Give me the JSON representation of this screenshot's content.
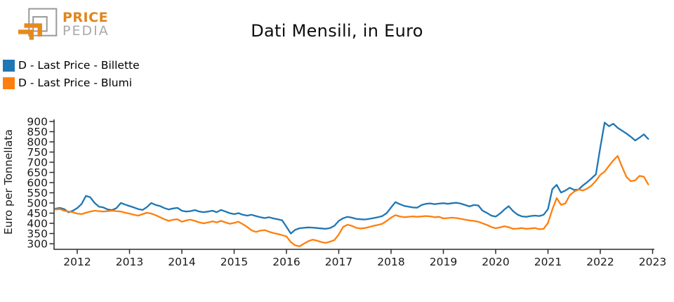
{
  "header": {
    "title": "Dati Mensili, in Euro",
    "logo": {
      "line1": "PRICE",
      "line2": "PEDIA"
    }
  },
  "legend": {
    "items": [
      {
        "label": "D - Last Price - Billette",
        "color": "#1f77b4"
      },
      {
        "label": "D - Last Price - Blumi",
        "color": "#ff7f0e"
      }
    ]
  },
  "brand_colors": {
    "logo_orange": "#e2851b",
    "logo_gray": "#9b9b9b"
  },
  "chart_data": {
    "type": "line",
    "title": "Dati Mensili, in Euro",
    "xlabel": "",
    "ylabel": "Euro per Tonnellata",
    "frequency": "monthly",
    "grid": false,
    "legend_position": "top-left",
    "x_start": {
      "year": 2011,
      "month": 8
    },
    "x_ticks": [
      2012,
      2013,
      2014,
      2015,
      2016,
      2017,
      2018,
      2019,
      2020,
      2021,
      2022,
      2023
    ],
    "y_ticks": [
      300,
      350,
      400,
      450,
      500,
      550,
      600,
      650,
      700,
      750,
      800,
      850,
      900
    ],
    "ylim": [
      272,
      908
    ],
    "series": [
      {
        "name": "D - Last Price - Billette",
        "color": "#1f77b4",
        "values": [
          472,
          476,
          470,
          454,
          462,
          475,
          495,
          535,
          528,
          500,
          482,
          478,
          468,
          465,
          475,
          500,
          492,
          485,
          478,
          470,
          466,
          480,
          500,
          490,
          485,
          475,
          468,
          473,
          476,
          462,
          458,
          460,
          465,
          458,
          455,
          458,
          462,
          455,
          466,
          458,
          450,
          445,
          450,
          442,
          438,
          442,
          436,
          430,
          426,
          430,
          424,
          420,
          415,
          383,
          350,
          368,
          376,
          378,
          380,
          379,
          377,
          375,
          373,
          377,
          388,
          412,
          425,
          432,
          428,
          422,
          420,
          419,
          422,
          426,
          430,
          436,
          450,
          478,
          504,
          494,
          486,
          482,
          478,
          477,
          490,
          496,
          498,
          494,
          497,
          499,
          496,
          499,
          501,
          497,
          490,
          483,
          490,
          488,
          462,
          451,
          438,
          433,
          448,
          468,
          484,
          460,
          443,
          434,
          432,
          436,
          438,
          436,
          442,
          470,
          568,
          589,
          551,
          561,
          575,
          564,
          566,
          586,
          602,
          621,
          641,
          772,
          895,
          877,
          889,
          869,
          855,
          841,
          825,
          807,
          821,
          837,
          814
        ]
      },
      {
        "name": "D - Last Price - Blumi",
        "color": "#ff7f0e",
        "values": [
          468,
          470,
          462,
          458,
          455,
          448,
          445,
          452,
          458,
          462,
          460,
          458,
          460,
          462,
          460,
          458,
          452,
          448,
          442,
          438,
          445,
          452,
          448,
          440,
          430,
          420,
          412,
          418,
          420,
          408,
          414,
          418,
          412,
          405,
          400,
          404,
          410,
          405,
          412,
          405,
          398,
          402,
          408,
          396,
          382,
          366,
          358,
          364,
          367,
          359,
          352,
          348,
          342,
          336,
          308,
          292,
          287,
          300,
          312,
          320,
          315,
          308,
          304,
          310,
          318,
          345,
          382,
          393,
          388,
          378,
          375,
          377,
          382,
          388,
          392,
          398,
          412,
          428,
          440,
          434,
          430,
          432,
          434,
          432,
          434,
          436,
          434,
          430,
          432,
          424,
          426,
          428,
          426,
          422,
          418,
          414,
          412,
          408,
          400,
          392,
          382,
          376,
          380,
          386,
          381,
          373,
          374,
          377,
          373,
          375,
          377,
          371,
          373,
          402,
          468,
          524,
          491,
          498,
          538,
          556,
          566,
          561,
          571,
          586,
          609,
          638,
          654,
          682,
          709,
          731,
          678,
          628,
          607,
          611,
          633,
          629,
          591
        ]
      }
    ]
  }
}
